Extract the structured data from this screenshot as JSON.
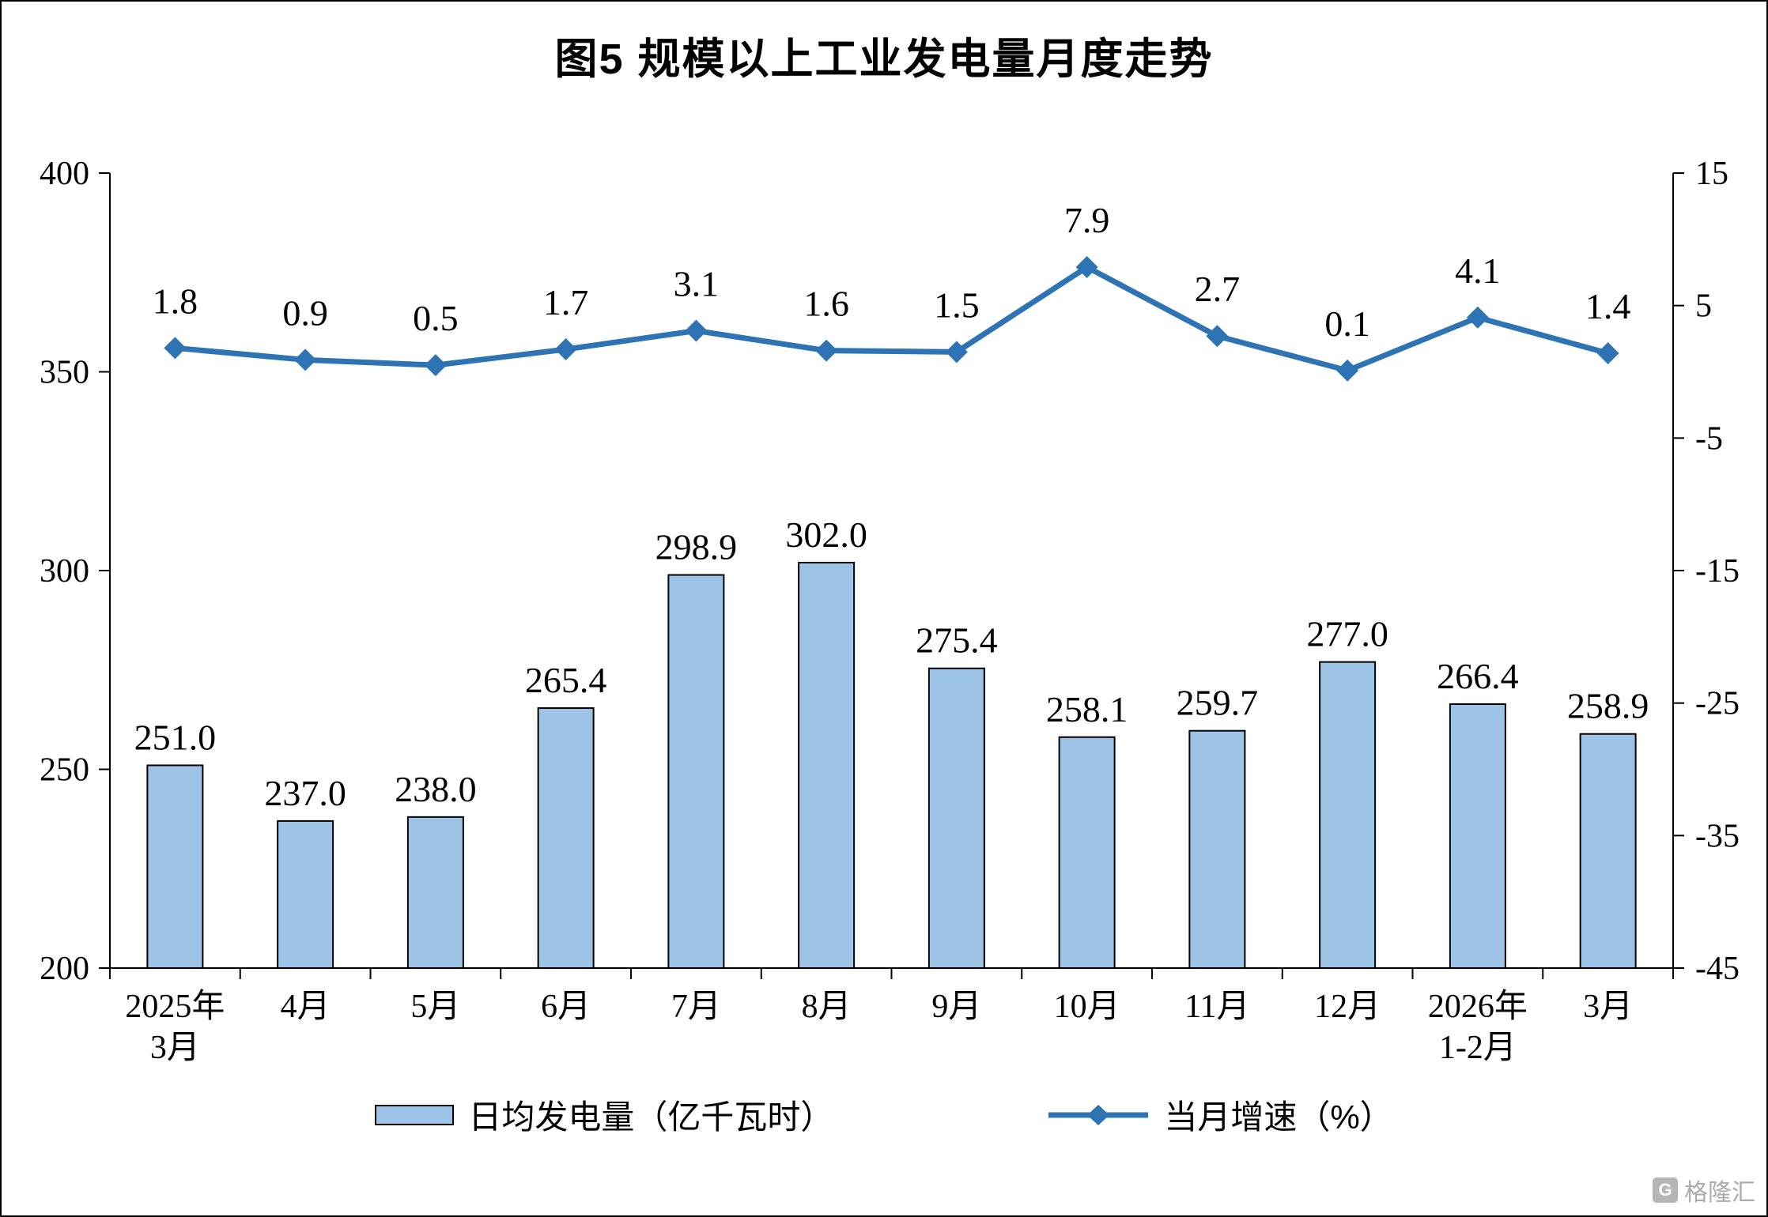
{
  "title": "图5  规模以上工业发电量月度走势",
  "watermark": "格隆汇",
  "colors": {
    "bar_fill": "#9DC3E6",
    "bar_border": "#000000",
    "line": "#2E74B5",
    "text": "#000000",
    "watermark": "#ABABAB"
  },
  "legend": {
    "bar_label": "日均发电量（亿千瓦时）",
    "line_label": "当月增速（%）"
  },
  "chart_data": {
    "type": "bar+line",
    "title": "图5  规模以上工业发电量月度走势",
    "categories": [
      "2025年\n3月",
      "4月",
      "5月",
      "6月",
      "7月",
      "8月",
      "9月",
      "10月",
      "11月",
      "12月",
      "2026年\n1-2月",
      "3月"
    ],
    "series": [
      {
        "name": "日均发电量（亿千瓦时）",
        "type": "bar",
        "axis": "left",
        "values": [
          251.0,
          237.0,
          238.0,
          265.4,
          298.9,
          302.0,
          275.4,
          258.1,
          259.7,
          277.0,
          266.4,
          258.9
        ]
      },
      {
        "name": "当月增速（%）",
        "type": "line",
        "axis": "right",
        "values": [
          1.8,
          0.9,
          0.5,
          1.7,
          3.1,
          1.6,
          1.5,
          7.9,
          2.7,
          0.1,
          4.1,
          1.4
        ]
      }
    ],
    "left_axis": {
      "min": 200,
      "max": 400,
      "ticks": [
        400,
        350,
        300,
        250,
        200
      ]
    },
    "right_axis": {
      "min": -45,
      "max": 15,
      "ticks": [
        15,
        5,
        -5,
        -15,
        -25,
        -35,
        -45
      ]
    },
    "grid": false,
    "legend_position": "bottom",
    "data_labels": true
  }
}
